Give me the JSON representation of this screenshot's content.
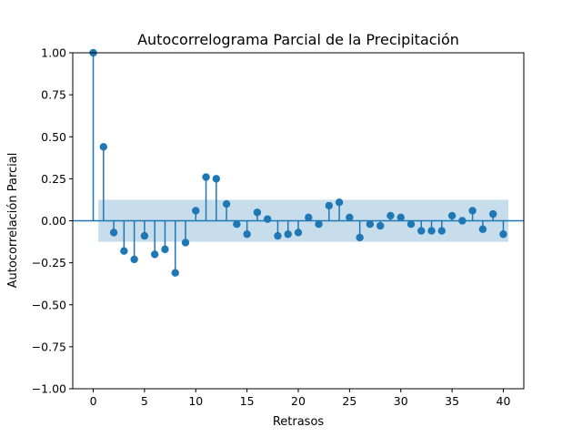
{
  "chart_data": {
    "type": "stem",
    "title": "Autocorrelograma Parcial de la Precipitación",
    "xlabel": "Retrasos",
    "ylabel": "Autocorrelación Parcial",
    "xlim": [
      -2.0,
      42.0
    ],
    "ylim": [
      -1.0,
      1.0
    ],
    "xticks": [
      0,
      5,
      10,
      15,
      20,
      25,
      30,
      35,
      40
    ],
    "xtick_labels": [
      "0",
      "5",
      "10",
      "15",
      "20",
      "25",
      "30",
      "35",
      "40"
    ],
    "yticks": [
      -1.0,
      -0.75,
      -0.5,
      -0.25,
      0.0,
      0.25,
      0.5,
      0.75,
      1.0
    ],
    "ytick_labels": [
      "−1.00",
      "−0.75",
      "−0.50",
      "−0.25",
      "0.00",
      "0.25",
      "0.50",
      "0.75",
      "1.00"
    ],
    "confidence_band": {
      "x_range": [
        0.5,
        40.5
      ],
      "lower": -0.125,
      "upper": 0.125
    },
    "grid": false,
    "colors": {
      "series": "#1f77b4",
      "band": "#1f77b4"
    },
    "x": [
      0,
      1,
      2,
      3,
      4,
      5,
      6,
      7,
      8,
      9,
      10,
      11,
      12,
      13,
      14,
      15,
      16,
      17,
      18,
      19,
      20,
      21,
      22,
      23,
      24,
      25,
      26,
      27,
      28,
      29,
      30,
      31,
      32,
      33,
      34,
      35,
      36,
      37,
      38,
      39,
      40
    ],
    "values": [
      1.0,
      0.44,
      -0.07,
      -0.18,
      -0.23,
      -0.09,
      -0.2,
      -0.17,
      -0.31,
      -0.13,
      0.06,
      0.26,
      0.25,
      0.1,
      -0.02,
      -0.08,
      0.05,
      0.01,
      -0.09,
      -0.08,
      -0.07,
      0.02,
      -0.02,
      0.09,
      0.11,
      0.02,
      -0.1,
      -0.02,
      -0.03,
      0.03,
      0.02,
      -0.02,
      -0.06,
      -0.06,
      -0.06,
      0.03,
      0.0,
      0.06,
      -0.05,
      0.04,
      -0.08
    ]
  }
}
